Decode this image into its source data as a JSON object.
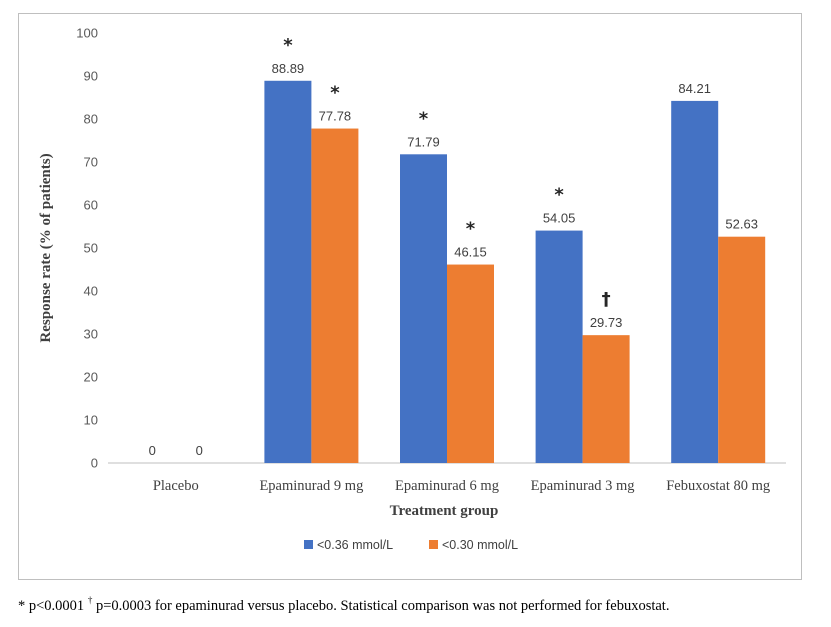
{
  "chart_data": {
    "type": "bar",
    "title": "",
    "xlabel": "Treatment group",
    "ylabel": "Response rate (% of patients)",
    "ylim": [
      0,
      100
    ],
    "yticks": [
      "0",
      "10",
      "20",
      "30",
      "40",
      "50",
      "60",
      "70",
      "80",
      "90",
      "100"
    ],
    "categories": [
      "Placebo",
      "Epaminurad 9 mg",
      "Epaminurad 6 mg",
      "Epaminurad 3 mg",
      "Febuxostat 80 mg"
    ],
    "series": [
      {
        "name": "<0.36 mmol/L",
        "color": "#4472c4",
        "values": [
          0,
          88.89,
          71.79,
          54.05,
          84.21
        ],
        "labels": [
          "0",
          "88.89",
          "71.79",
          "54.05",
          "84.21"
        ],
        "markers": [
          "",
          "*",
          "*",
          "*",
          ""
        ]
      },
      {
        "name": "<0.30 mmol/L",
        "color": "#ed7d31",
        "values": [
          0,
          77.78,
          46.15,
          29.73,
          52.63
        ],
        "labels": [
          "0",
          "77.78",
          "46.15",
          "29.73",
          "52.63"
        ],
        "markers": [
          "",
          "*",
          "*",
          "†",
          ""
        ]
      }
    ],
    "grid": false,
    "legend_position": "bottom"
  },
  "footnote": {
    "star": "* p<0.0001",
    "dagger": "†",
    "rest": " p=0.0003 for epaminurad versus placebo. Statistical comparison was not performed for febuxostat."
  }
}
